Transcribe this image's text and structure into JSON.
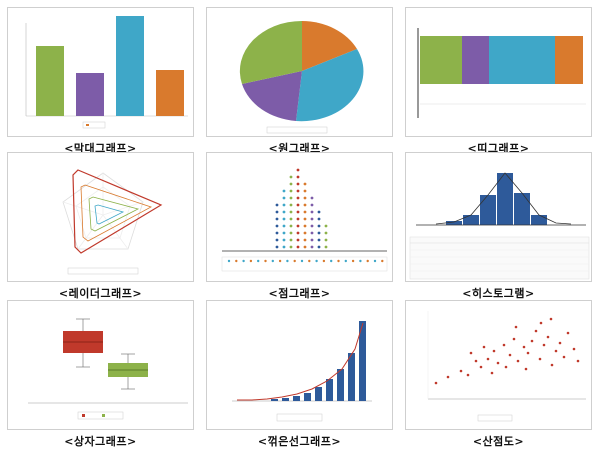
{
  "captions": [
    "<막대그래프>",
    "<원그래프>",
    "<띠그래프>",
    "<레이더그래프>",
    "<점그래프>",
    "<히스토그램>",
    "<상자그래프>",
    "<꺾은선그래프>",
    "<산점도>"
  ],
  "colors": {
    "green": "#8db24a",
    "purple": "#7d5ca8",
    "blue": "#3fa7c8",
    "orange": "#d97a2d",
    "red": "#c0392b",
    "navy": "#2e5a9a"
  }
}
